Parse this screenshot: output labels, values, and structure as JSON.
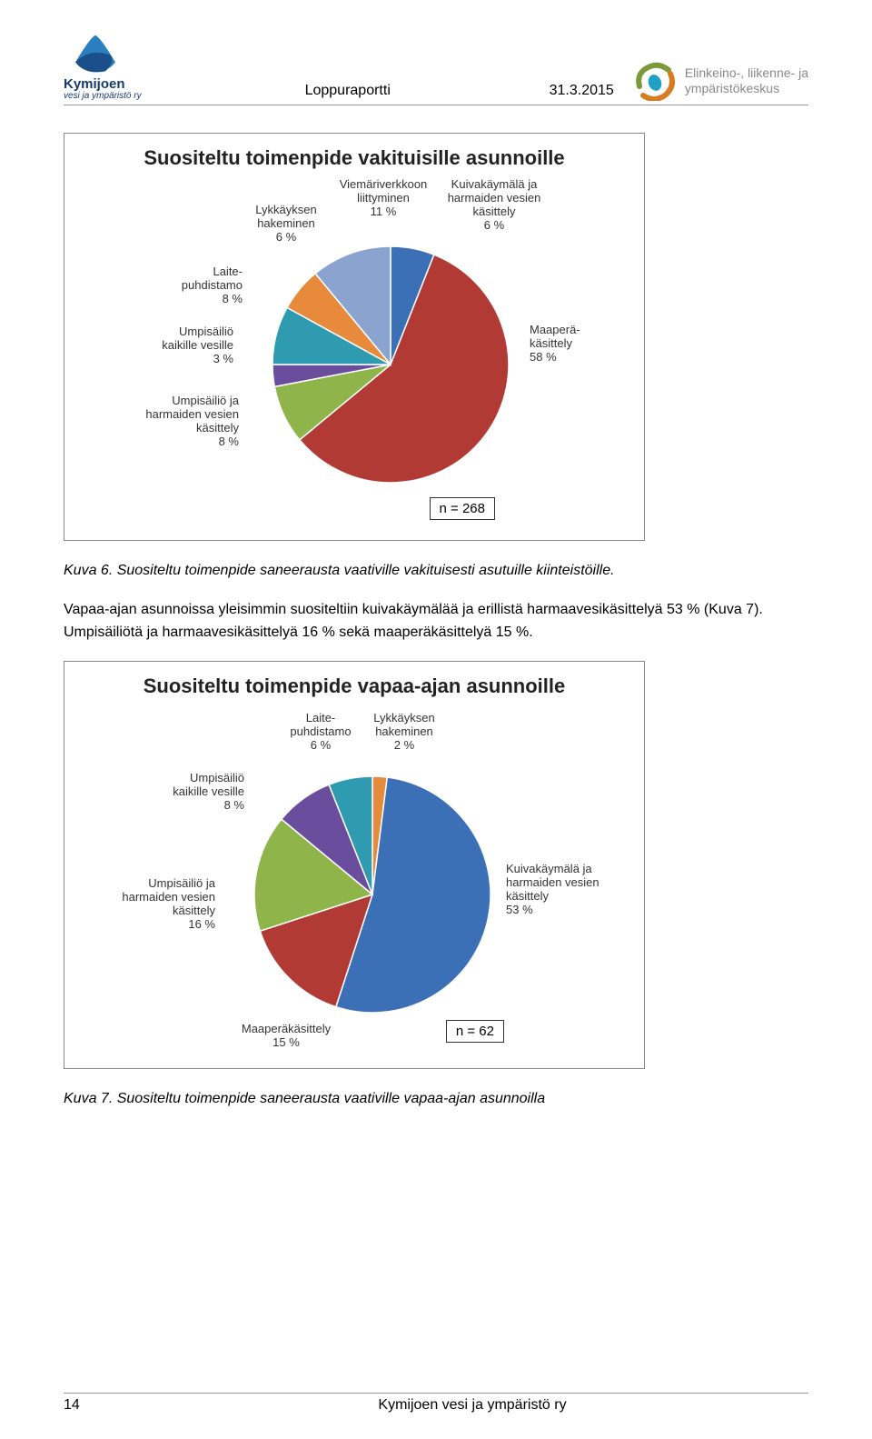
{
  "header": {
    "center_title": "Loppuraportti",
    "date": "31.3.2015",
    "logo_left_name": "Kymijoen",
    "logo_left_sub": "vesi ja ympäristö ry",
    "logo_right_line1": "Elinkeino-, liikenne- ja",
    "logo_right_line2": "ympäristökeskus"
  },
  "chart1": {
    "type": "pie",
    "title": "Suositeltu toimenpide vakituisille asunnoille",
    "n_label": "n = 268",
    "background_color": "#ffffff",
    "title_fontsize": 22,
    "label_fontsize": 13,
    "slices": [
      {
        "label": "Kuivakäymälä ja harmaiden vesien käsittely",
        "pct": 6,
        "color": "#3b6fb6"
      },
      {
        "label": "Maaperä-käsittely",
        "pct": 58,
        "color": "#b13a34"
      },
      {
        "label": "Umpisäiliö ja harmaiden vesien käsittely",
        "pct": 8,
        "color": "#8fb54a"
      },
      {
        "label": "Umpisäiliö kaikille vesille",
        "pct": 3,
        "color": "#6a4d9c"
      },
      {
        "label": "Laite-puhdistamo",
        "pct": 8,
        "color": "#2f9bb0"
      },
      {
        "label": "Lykkäyksen hakeminen",
        "pct": 6,
        "color": "#e88a3c"
      },
      {
        "label": "Viemäriverkkoon liittyminen",
        "pct": 11,
        "color": "#8aa4cf"
      }
    ]
  },
  "caption1": "Kuva 6. Suositeltu toimenpide saneerausta vaativille vakituisesti asutuille kiinteistöille.",
  "paragraph": "Vapaa-ajan asunnoissa yleisimmin suositeltiin kuivakäymälää ja erillistä harmaavesikäsittelyä 53 % (Kuva 7). Umpisäiliötä ja harmaavesikäsittelyä 16 % sekä maaperäkäsittelyä 15 %.",
  "chart2": {
    "type": "pie",
    "title": "Suositeltu toimenpide vapaa-ajan asunnoille",
    "n_label": "n = 62",
    "background_color": "#ffffff",
    "title_fontsize": 22,
    "label_fontsize": 13,
    "slices": [
      {
        "label": "Lykkäyksen hakeminen",
        "pct": 2,
        "color": "#e88a3c"
      },
      {
        "label": "Kuivakäymälä ja harmaiden vesien käsittely",
        "pct": 53,
        "color": "#3b6fb6"
      },
      {
        "label": "Maaperäkäsittely",
        "pct": 15,
        "color": "#b13a34"
      },
      {
        "label": "Umpisäiliö ja harmaiden vesien käsittely",
        "pct": 16,
        "color": "#8fb54a"
      },
      {
        "label": "Umpisäiliö kaikille vesille",
        "pct": 8,
        "color": "#6a4d9c"
      },
      {
        "label": "Laite-puhdistamo",
        "pct": 6,
        "color": "#2f9bb0"
      }
    ]
  },
  "caption2": "Kuva 7. Suositeltu toimenpide saneerausta vaativille vapaa-ajan asunnoilla",
  "footer": {
    "page_number": "14",
    "org": "Kymijoen vesi ja ympäristö ry"
  }
}
